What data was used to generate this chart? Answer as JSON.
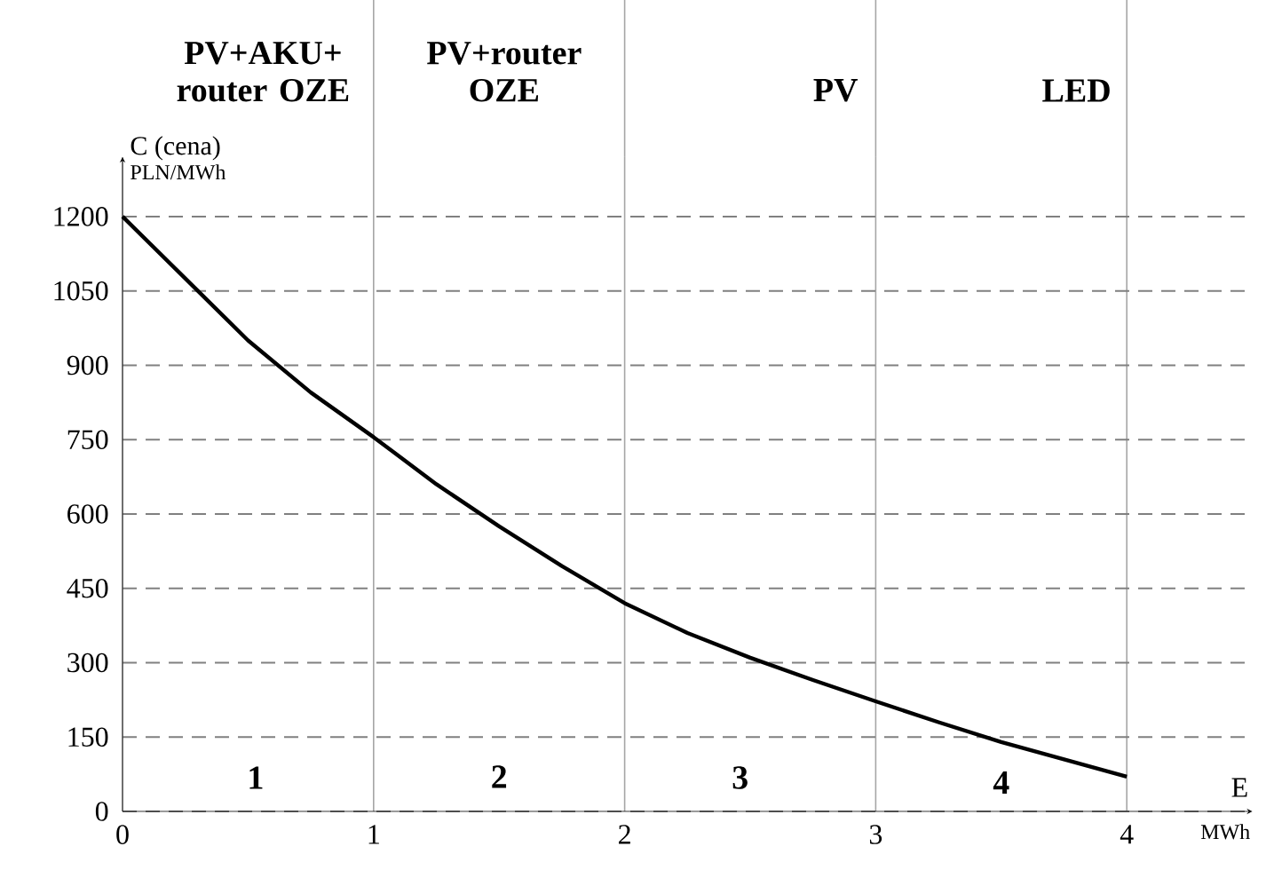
{
  "chart_data": {
    "type": "line",
    "xlabel": "E",
    "ylabel": "C (cena)",
    "x": [
      0,
      0.25,
      0.5,
      0.75,
      1,
      1.25,
      1.5,
      1.75,
      2,
      2.25,
      2.5,
      2.75,
      3,
      3.25,
      3.5,
      3.75,
      4
    ],
    "series": [
      {
        "color": "#000000",
        "values": [
          1200,
          1075,
          950,
          845,
          755,
          660,
          575,
          495,
          420,
          360,
          310,
          265,
          222,
          180,
          140,
          105,
          70
        ]
      }
    ],
    "xlim": [
      0,
      4.5
    ],
    "ylim": [
      0,
      1320
    ],
    "xticks": [
      0,
      1,
      2,
      3,
      4
    ],
    "yticks": [
      0,
      150,
      300,
      450,
      600,
      750,
      900,
      1050,
      1200
    ],
    "grid": true,
    "marker": "none",
    "line_style": "solid",
    "annotations": [
      "PV+AKU+ router OZE",
      "PV+router OZE",
      "PV",
      "LED",
      "1",
      "2",
      "3",
      "4",
      "PLN/MWh",
      "MWh"
    ]
  }
}
